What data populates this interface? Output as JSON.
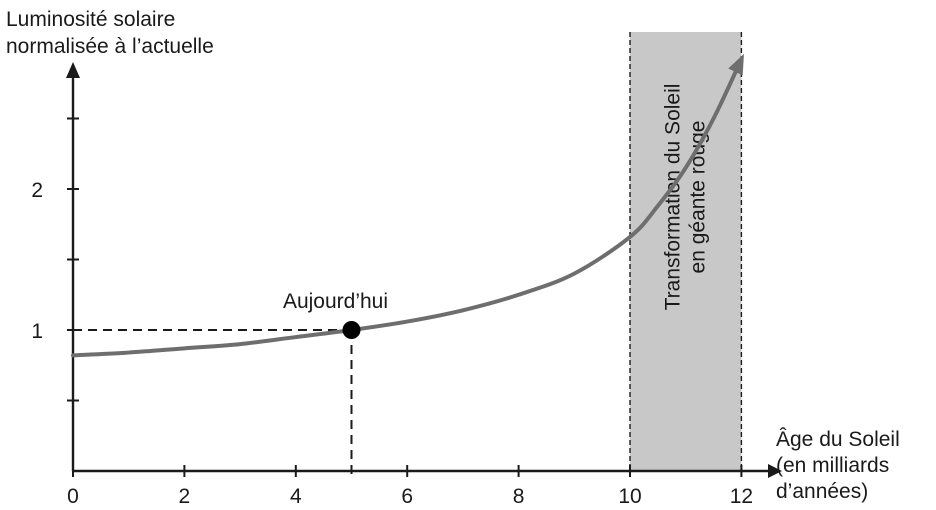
{
  "chart_data": {
    "type": "line",
    "ylabel": [
      "Luminosité solaire",
      "normalisée à l’actuelle"
    ],
    "xlabel": [
      "Âge du Soleil",
      "(en milliards",
      "d’années)"
    ],
    "xticks": [
      0,
      2,
      4,
      6,
      8,
      10,
      12
    ],
    "yticks_labeled": [
      1,
      2
    ],
    "yticks_minor": [
      0.5,
      1.5,
      2.5
    ],
    "xlim": [
      0,
      12.5
    ],
    "ylim": [
      0,
      2.9
    ],
    "series": [
      {
        "x": [
          0,
          1,
          2,
          3,
          4,
          5,
          6,
          7,
          8,
          9,
          10,
          10.5,
          11,
          11.5,
          12
        ],
        "y": [
          0.82,
          0.84,
          0.87,
          0.9,
          0.95,
          1.0,
          1.06,
          1.14,
          1.25,
          1.4,
          1.66,
          1.88,
          2.15,
          2.5,
          2.92
        ]
      }
    ],
    "annotations": {
      "point": {
        "x": 5,
        "y": 1,
        "label": "Aujourd’hui"
      },
      "shaded_region": {
        "x_start": 10,
        "x_end": 12,
        "label": [
          "Transformation du Soleil",
          "en géante rouge"
        ]
      }
    },
    "colors": {
      "curve": "#6e6e6e",
      "band": "#c8c8c8",
      "axis": "#1a1a1a"
    }
  }
}
